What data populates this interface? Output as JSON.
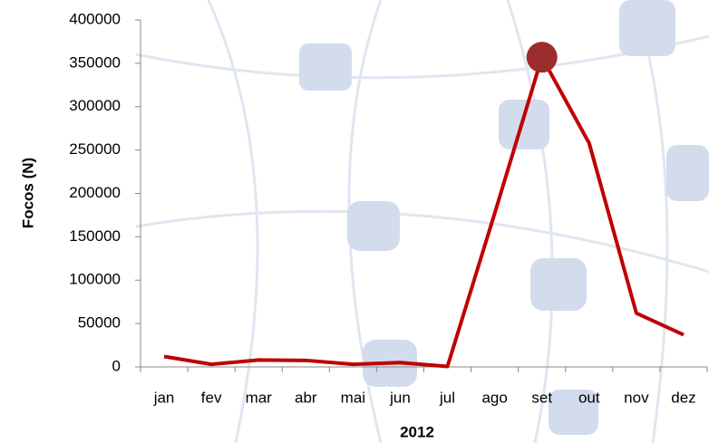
{
  "chart_data": {
    "type": "line",
    "x_label": "2012",
    "y_label": "Focos (N)",
    "categories": [
      "jan",
      "fev",
      "mar",
      "abr",
      "mai",
      "jun",
      "jul",
      "ago",
      "set",
      "out",
      "nov",
      "dez"
    ],
    "series": [
      {
        "name": "Focos",
        "color": "#c00000",
        "values": [
          12000,
          3000,
          8000,
          7500,
          3000,
          5000,
          500,
          177000,
          357000,
          258000,
          62000,
          37000
        ]
      }
    ],
    "highlight_index": 8,
    "highlight_color": "#9b2d2d",
    "ylim": [
      0,
      400000
    ],
    "yticks": [
      0,
      50000,
      100000,
      150000,
      200000,
      250000,
      300000,
      350000,
      400000
    ]
  }
}
